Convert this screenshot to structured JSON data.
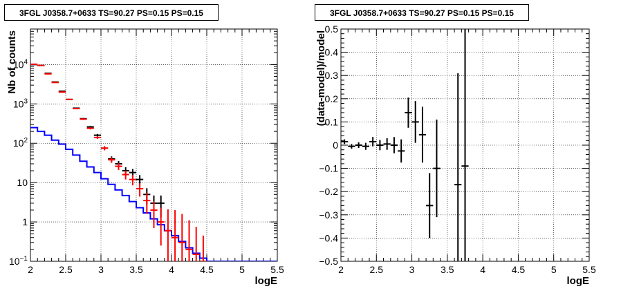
{
  "chart_data": [
    {
      "type": "line",
      "title": "3FGL J0358.7+0633 TS=90.27 PS=0.15 PS=0.15",
      "xlabel": "logE",
      "ylabel": "Nb of counts",
      "xlim": [
        2,
        5.5
      ],
      "ylim": [
        0.1,
        80000
      ],
      "yscale": "log",
      "grid": true,
      "x_ticks": [
        "2",
        "2.5",
        "3",
        "3.5",
        "4",
        "4.5",
        "5",
        "5.5"
      ],
      "y_ticks": [
        "10^-1",
        "1",
        "10",
        "10^2",
        "10^3",
        "10^4"
      ],
      "series": [
        {
          "style": "step",
          "color": "#0000ff",
          "x": [
            2.05,
            2.15,
            2.25,
            2.35,
            2.45,
            2.55,
            2.65,
            2.75,
            2.85,
            2.95,
            3.05,
            3.15,
            3.25,
            3.35,
            3.45,
            3.55,
            3.65,
            3.75,
            3.85,
            3.95,
            4.05,
            4.15,
            4.25,
            4.35,
            4.45,
            4.55,
            4.65,
            4.75,
            4.85,
            4.95,
            5.05,
            5.15,
            5.25,
            5.35,
            5.45
          ],
          "values": [
            250,
            200,
            160,
            120,
            95,
            70,
            50,
            35,
            25,
            18,
            12.5,
            9,
            6.5,
            4.7,
            3.3,
            2.3,
            1.7,
            1.2,
            0.85,
            0.6,
            0.45,
            0.32,
            0.22,
            0.16,
            0.12,
            0.1,
            0.1,
            0.1,
            0.1,
            0.1,
            0.1,
            0.1,
            0.1,
            0.1,
            0.1
          ]
        },
        {
          "style": "errorbar",
          "color": "#000000",
          "x": [
            2.05,
            2.15,
            2.25,
            2.35,
            2.45,
            2.55,
            2.65,
            2.75,
            2.85,
            2.95,
            3.05,
            3.15,
            3.25,
            3.35,
            3.45,
            3.55,
            3.65,
            3.75,
            3.85
          ],
          "values": [
            10000,
            9500,
            6000,
            3600,
            2100,
            1300,
            780,
            420,
            260,
            160,
            75,
            40,
            30,
            20,
            18,
            12,
            5,
            3,
            3
          ],
          "err_low": [
            100,
            95,
            77,
            60,
            46,
            36,
            28,
            20,
            16,
            12.6,
            8.7,
            6.3,
            5.5,
            4.5,
            4.2,
            3.5,
            2.2,
            1.7,
            1.7
          ],
          "err_high": [
            100,
            95,
            77,
            60,
            46,
            36,
            28,
            20,
            16,
            12.6,
            8.7,
            6.3,
            5.5,
            4.5,
            4.2,
            3.5,
            2.2,
            1.7,
            1.7
          ]
        },
        {
          "style": "errorbar",
          "color": "#ff0000",
          "x": [
            2.05,
            2.15,
            2.25,
            2.35,
            2.45,
            2.55,
            2.65,
            2.75,
            2.85,
            2.95,
            3.05,
            3.15,
            3.25,
            3.35,
            3.45,
            3.55,
            3.65,
            3.75,
            3.85,
            3.95,
            4.05,
            4.15,
            4.25,
            4.35,
            4.45
          ],
          "values": [
            10200,
            9500,
            5800,
            3500,
            2000,
            1300,
            760,
            410,
            240,
            140,
            75,
            38,
            26,
            16,
            12,
            7,
            3.5,
            2,
            1,
            0.6,
            0.4,
            0.3,
            0.2,
            0.15,
            0.1
          ],
          "err_low": [
            100,
            95,
            76,
            59,
            45,
            36,
            28,
            20,
            15.5,
            11.8,
            8.7,
            6.2,
            5.1,
            4,
            3.5,
            2.6,
            1.9,
            1.3,
            0.75,
            0.5,
            0.33,
            0.25,
            0.18,
            0.15,
            0.1
          ],
          "err_high": [
            100,
            95,
            76,
            59,
            45,
            36,
            28,
            20,
            15.5,
            11.8,
            8.7,
            6.2,
            5.1,
            4,
            3.5,
            2.6,
            1.9,
            1.3,
            1.3,
            1.5,
            1.6,
            1.3,
            0.9,
            0.6,
            0.35
          ]
        }
      ]
    },
    {
      "type": "scatter",
      "title": "3FGL J0358.7+0633 TS=90.27 PS=0.15 PS=0.15",
      "xlabel": "logE",
      "ylabel": "(data-model)/model",
      "xlim": [
        2,
        5.5
      ],
      "ylim": [
        -0.5,
        0.5
      ],
      "grid": true,
      "x_ticks": [
        "2",
        "2.5",
        "3",
        "3.5",
        "4",
        "4.5",
        "5",
        "5.5"
      ],
      "y_ticks": [
        "−0.5",
        "−0.4",
        "−0.3",
        "−0.2",
        "−0.1",
        "0",
        "0.1",
        "0.2",
        "0.3",
        "0.4",
        "0.5"
      ],
      "series": [
        {
          "style": "errorbar",
          "color": "#000000",
          "x": [
            2.05,
            2.15,
            2.25,
            2.35,
            2.45,
            2.55,
            2.65,
            2.75,
            2.85,
            2.95,
            3.05,
            3.15,
            3.25,
            3.35,
            3.65,
            3.75
          ],
          "values": [
            0.015,
            -0.005,
            0.0,
            -0.005,
            0.015,
            0.0,
            0.005,
            0.0,
            -0.025,
            0.14,
            0.1,
            0.045,
            -0.26,
            -0.1,
            -0.17,
            -0.09
          ],
          "err": [
            0.01,
            0.01,
            0.012,
            0.015,
            0.02,
            0.022,
            0.025,
            0.035,
            0.05,
            0.065,
            0.09,
            0.12,
            0.14,
            0.21,
            0.48,
            0.6
          ]
        }
      ]
    }
  ]
}
